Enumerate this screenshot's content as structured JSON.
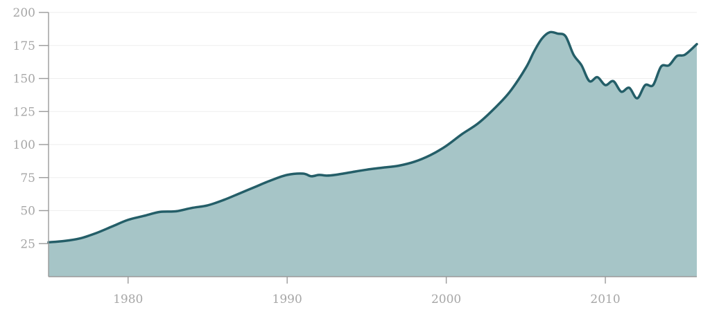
{
  "chart_data": {
    "type": "area",
    "title": "",
    "xlabel": "",
    "ylabel": "",
    "xlim": [
      1975,
      2015.75
    ],
    "ylim": [
      0,
      200
    ],
    "grid": true,
    "x_ticks": [
      1980,
      1990,
      2000,
      2010
    ],
    "x_tick_labels": [
      "1980",
      "1990",
      "2000",
      "2010"
    ],
    "y_ticks": [
      25,
      50,
      75,
      100,
      125,
      150,
      175,
      200
    ],
    "y_tick_labels": [
      "25",
      "50",
      "75",
      "100",
      "125",
      "150",
      "175",
      "200"
    ],
    "colors": {
      "line": "#245e68",
      "fill": "#a6c5c7",
      "grid": "#eeeeee",
      "axis": "#9a9a9a",
      "tick_text": "#a6a6a6"
    },
    "series": [
      {
        "x": [
          1975,
          1976,
          1977,
          1978,
          1979,
          1980,
          1981,
          1982,
          1983,
          1984,
          1985,
          1986,
          1987,
          1988,
          1989,
          1990,
          1991,
          1991.5,
          1992,
          1992.5,
          1993,
          1994,
          1995,
          1996,
          1997,
          1998,
          1999,
          2000,
          2001,
          2002,
          2003,
          2004,
          2005,
          2005.5,
          2006,
          2006.5,
          2007,
          2007.5,
          2008,
          2008.5,
          2009,
          2009.5,
          2010,
          2010.5,
          2011,
          2011.5,
          2012,
          2012.5,
          2013,
          2013.5,
          2014,
          2014.5,
          2015,
          2015.75
        ],
        "values": [
          26,
          27,
          29,
          33,
          38,
          43,
          46,
          49,
          49.5,
          52,
          54,
          58,
          63,
          68,
          73,
          77,
          78,
          76,
          77,
          76.5,
          77,
          79,
          81,
          82.5,
          84,
          87,
          92,
          99,
          108,
          116,
          127,
          140,
          158,
          170,
          180,
          185,
          184,
          182,
          168,
          160,
          148,
          151,
          145,
          148,
          140,
          143,
          135,
          145,
          145,
          159,
          160,
          167,
          168,
          176
        ]
      }
    ]
  }
}
